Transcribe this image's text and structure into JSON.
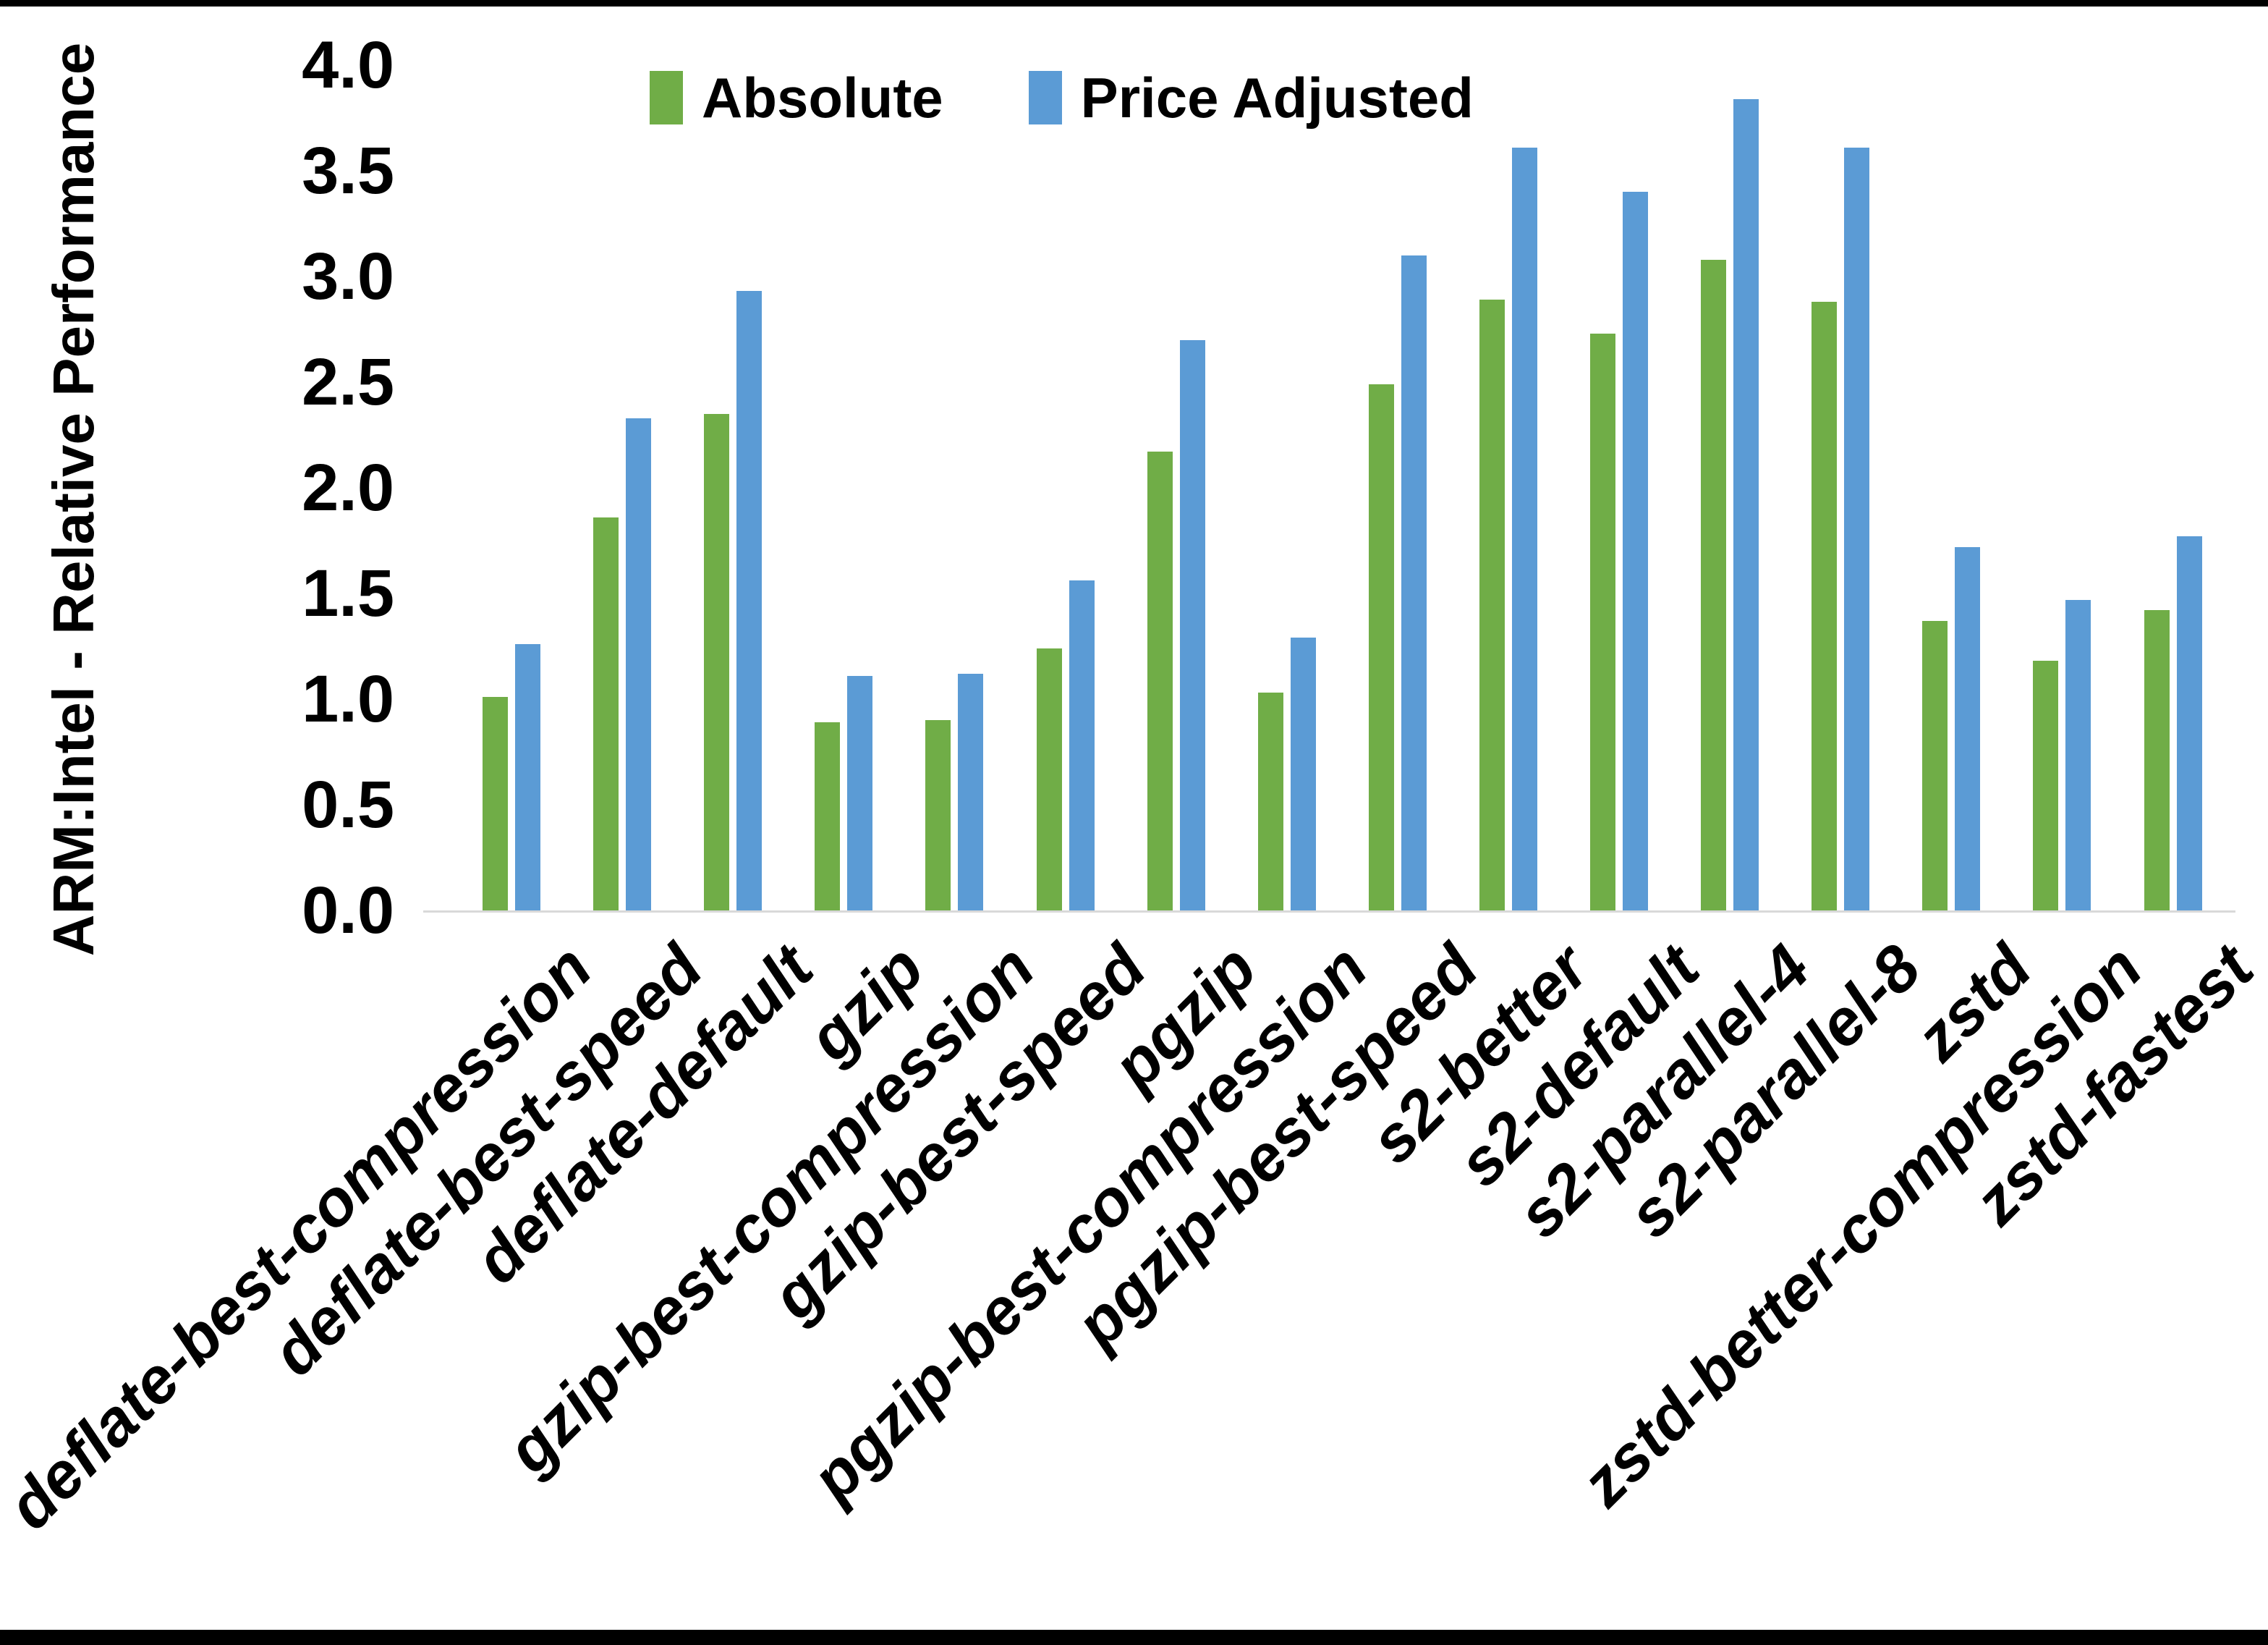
{
  "frame": {
    "top_rule_color": "#000000",
    "bottom_rule_color": "#000000",
    "background": "#ffffff"
  },
  "chart_data": {
    "type": "bar",
    "title": "",
    "xlabel": "",
    "ylabel": "ARM:Intel - Relative Performance",
    "ylim": [
      0.0,
      4.0
    ],
    "ytick_step": 0.5,
    "yticks": [
      "0.0",
      "0.5",
      "1.0",
      "1.5",
      "2.0",
      "2.5",
      "3.0",
      "3.5",
      "4.0"
    ],
    "grid": false,
    "legend_position": "top-center",
    "axis_line_color": "#D9D9D9",
    "text_color": "#000000",
    "categories": [
      "deflate-best-compression",
      "deflate-best-speed",
      "deflate-default",
      "gzip",
      "gzip-best-compression",
      "gzip-best-speed",
      "pgzip",
      "pgzip-best-compression",
      "pgzip-best-speed",
      "s2-better",
      "s2-default",
      "s2-parallel-4",
      "s2-parallel-8",
      "zstd",
      "zstd-better-compression",
      "zstd-fastest"
    ],
    "series": [
      {
        "name": "Absolute",
        "color": "#70AD47",
        "values": [
          1.01,
          1.86,
          2.35,
          0.89,
          0.9,
          1.24,
          2.17,
          1.03,
          2.49,
          2.89,
          2.73,
          3.08,
          2.88,
          1.37,
          1.18,
          1.42
        ]
      },
      {
        "name": "Price Adjusted",
        "color": "#5B9BD5",
        "values": [
          1.26,
          2.33,
          2.93,
          1.11,
          1.12,
          1.56,
          2.7,
          1.29,
          3.1,
          3.61,
          3.4,
          3.84,
          3.61,
          1.72,
          1.47,
          1.77
        ]
      }
    ]
  }
}
